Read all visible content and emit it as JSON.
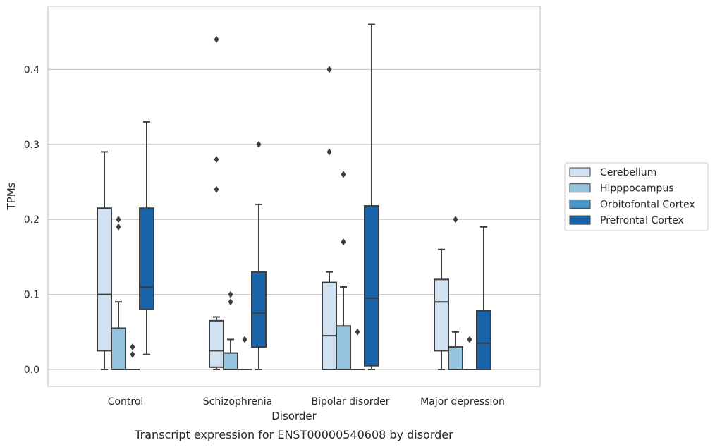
{
  "chart_data": {
    "type": "box",
    "caption": "Transcript expression for ENST00000540608 by disorder",
    "xlabel": "Disorder",
    "ylabel": "TPMs",
    "ylim": [
      -0.022,
      0.486
    ],
    "yticks": [
      0.0,
      0.1,
      0.2,
      0.3,
      0.4
    ],
    "ytick_labels": [
      "0.0",
      "0.1",
      "0.2",
      "0.3",
      "0.4"
    ],
    "grid": true,
    "legend_position": "right",
    "categories": [
      "Control",
      "Schizophrenia",
      "Bipolar disorder",
      "Major depression"
    ],
    "series": [
      {
        "name": "Cerebellum",
        "color": "#d0e1f2",
        "boxes": [
          {
            "q1": 0.025,
            "median": 0.1,
            "q3": 0.215,
            "whisker_low": 0.0,
            "whisker_high": 0.29,
            "outliers": []
          },
          {
            "q1": 0.003,
            "median": 0.025,
            "q3": 0.065,
            "whisker_low": 0.0,
            "whisker_high": 0.07,
            "outliers": [
              0.44,
              0.28,
              0.24
            ]
          },
          {
            "q1": 0.0,
            "median": 0.045,
            "q3": 0.116,
            "whisker_low": 0.0,
            "whisker_high": 0.13,
            "outliers": [
              0.4,
              0.29
            ]
          },
          {
            "q1": 0.025,
            "median": 0.09,
            "q3": 0.12,
            "whisker_low": 0.0,
            "whisker_high": 0.16,
            "outliers": []
          }
        ]
      },
      {
        "name": "Hipppocampus",
        "color": "#94c4df",
        "boxes": [
          {
            "q1": 0.0,
            "median": 0.0,
            "q3": 0.055,
            "whisker_low": 0.0,
            "whisker_high": 0.09,
            "outliers": [
              0.2,
              0.19
            ]
          },
          {
            "q1": 0.0,
            "median": 0.0,
            "q3": 0.022,
            "whisker_low": 0.0,
            "whisker_high": 0.04,
            "outliers": [
              0.1,
              0.09
            ]
          },
          {
            "q1": 0.0,
            "median": 0.0,
            "q3": 0.058,
            "whisker_low": 0.0,
            "whisker_high": 0.11,
            "outliers": [
              0.26,
              0.17
            ]
          },
          {
            "q1": 0.0,
            "median": 0.0,
            "q3": 0.03,
            "whisker_low": 0.0,
            "whisker_high": 0.05,
            "outliers": [
              0.2
            ]
          }
        ]
      },
      {
        "name": "Orbitofontal Cortex",
        "color": "#4a98c9",
        "boxes": [
          {
            "q1": 0.0,
            "median": 0.0,
            "q3": 0.0,
            "whisker_low": 0.0,
            "whisker_high": 0.0,
            "outliers": [
              0.03,
              0.02
            ]
          },
          {
            "q1": 0.0,
            "median": 0.0,
            "q3": 0.0,
            "whisker_low": 0.0,
            "whisker_high": 0.0,
            "outliers": [
              0.04
            ]
          },
          {
            "q1": 0.0,
            "median": 0.0,
            "q3": 0.0,
            "whisker_low": 0.0,
            "whisker_high": 0.0,
            "outliers": [
              0.05
            ]
          },
          {
            "q1": 0.0,
            "median": 0.0,
            "q3": 0.0,
            "whisker_low": 0.0,
            "whisker_high": 0.0,
            "outliers": [
              0.04
            ]
          }
        ]
      },
      {
        "name": "Prefrontal Cortex",
        "color": "#1764ab",
        "boxes": [
          {
            "q1": 0.08,
            "median": 0.11,
            "q3": 0.215,
            "whisker_low": 0.02,
            "whisker_high": 0.33,
            "outliers": []
          },
          {
            "q1": 0.03,
            "median": 0.075,
            "q3": 0.13,
            "whisker_low": 0.0,
            "whisker_high": 0.22,
            "outliers": [
              0.3
            ]
          },
          {
            "q1": 0.005,
            "median": 0.095,
            "q3": 0.218,
            "whisker_low": 0.0,
            "whisker_high": 0.46,
            "outliers": []
          },
          {
            "q1": 0.0,
            "median": 0.035,
            "q3": 0.078,
            "whisker_low": 0.0,
            "whisker_high": 0.19,
            "outliers": []
          }
        ]
      }
    ]
  }
}
